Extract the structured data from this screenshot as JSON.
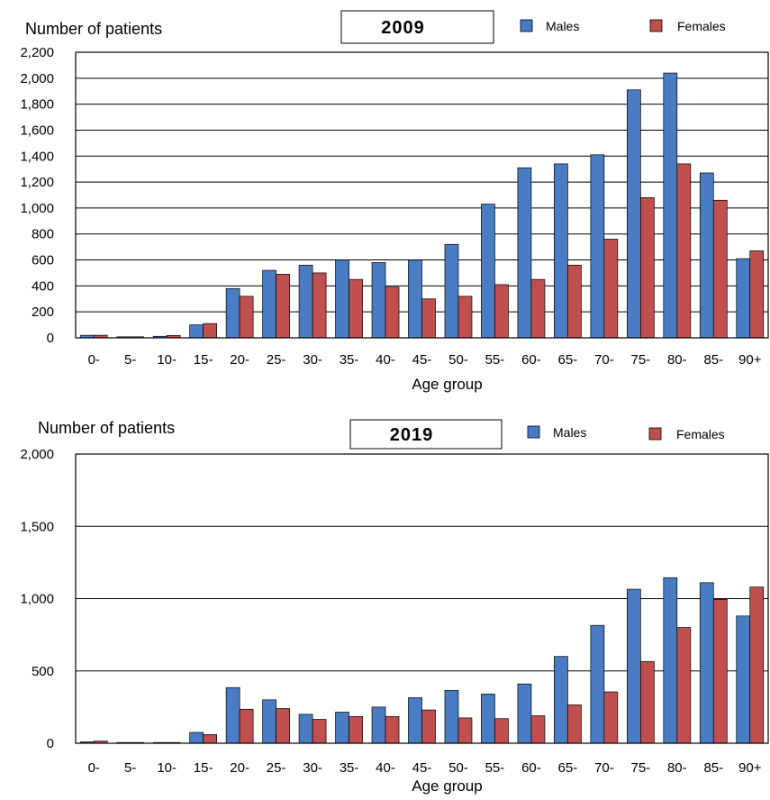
{
  "colors": {
    "males": "#4a7cc4",
    "females": "#c0504d",
    "grid": "#000000"
  },
  "chart_data": [
    {
      "type": "bar",
      "title": "2009",
      "ylabel": "Number of patients",
      "xlabel": "Age group",
      "ylim": [
        0,
        2200
      ],
      "yticks": [
        0,
        200,
        400,
        600,
        800,
        1000,
        1200,
        1400,
        1600,
        1800,
        2000,
        2200
      ],
      "ytick_labels": [
        "0",
        "200",
        "400",
        "600",
        "800",
        "1,000",
        "1,200",
        "1,400",
        "1,600",
        "1,800",
        "2,000",
        "2,200"
      ],
      "grid": true,
      "legend_position": "top-right",
      "categories": [
        "0-",
        "5-",
        "10-",
        "15-",
        "20-",
        "25-",
        "30-",
        "35-",
        "40-",
        "45-",
        "50-",
        "55-",
        "60-",
        "65-",
        "70-",
        "75-",
        "80-",
        "85-",
        "90+"
      ],
      "series": [
        {
          "name": "Males",
          "values": [
            20,
            8,
            12,
            100,
            380,
            520,
            560,
            600,
            580,
            600,
            720,
            1030,
            1310,
            1340,
            1410,
            1910,
            2040,
            1270,
            610
          ]
        },
        {
          "name": "Females",
          "values": [
            20,
            8,
            18,
            110,
            320,
            490,
            500,
            450,
            390,
            300,
            320,
            410,
            450,
            560,
            760,
            1080,
            1340,
            1060,
            670
          ]
        }
      ]
    },
    {
      "type": "bar",
      "title": "2019",
      "ylabel": "Number of patients",
      "xlabel": "Age group",
      "ylim": [
        0,
        2000
      ],
      "yticks": [
        0,
        500,
        1000,
        1500,
        2000
      ],
      "ytick_labels": [
        "0",
        "500",
        "1,000",
        "1,500",
        "2,000"
      ],
      "grid": true,
      "legend_position": "top-right",
      "categories": [
        "0-",
        "5-",
        "10-",
        "15-",
        "20-",
        "25-",
        "30-",
        "35-",
        "40-",
        "45-",
        "50-",
        "55-",
        "60-",
        "65-",
        "70-",
        "75-",
        "80-",
        "85-",
        "90+"
      ],
      "series": [
        {
          "name": "Males",
          "values": [
            10,
            5,
            5,
            75,
            385,
            300,
            200,
            215,
            250,
            315,
            365,
            340,
            410,
            600,
            815,
            1065,
            1145,
            1110,
            880
          ]
        },
        {
          "name": "Females",
          "values": [
            15,
            5,
            5,
            60,
            235,
            240,
            165,
            185,
            185,
            230,
            175,
            170,
            190,
            265,
            355,
            565,
            800,
            995,
            1080
          ]
        }
      ]
    }
  ]
}
